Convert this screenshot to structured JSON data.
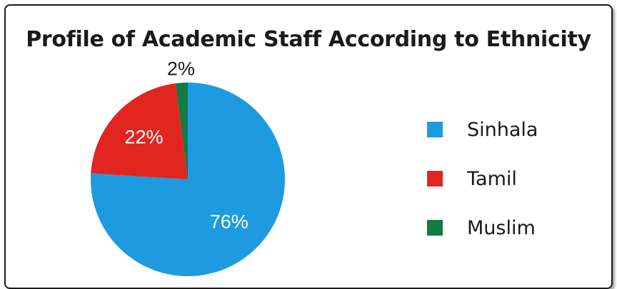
{
  "chart_data": {
    "type": "pie",
    "title": "Profile of Academic Staff According to Ethnicity",
    "categories": [
      "Sinhala",
      "Tamil",
      "Muslim"
    ],
    "values": [
      76,
      22,
      2
    ],
    "labels": [
      "76%",
      "22%",
      "2%"
    ],
    "colors": [
      "#1e9be0",
      "#e0261f",
      "#127a42"
    ],
    "legend_position": "right"
  }
}
